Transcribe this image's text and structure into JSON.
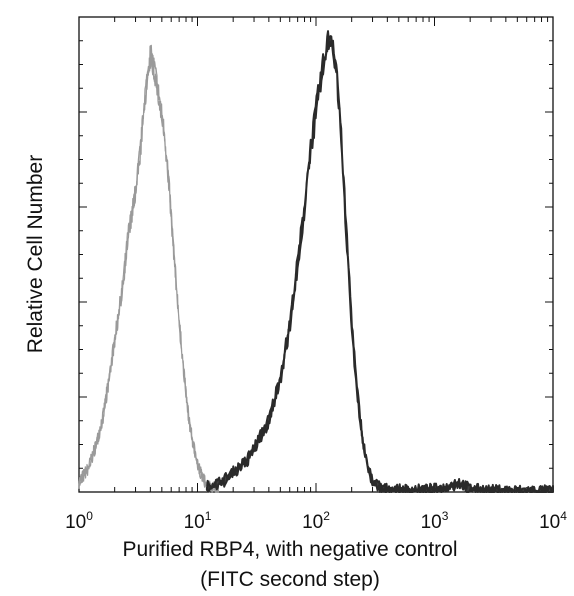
{
  "chart_data": {
    "type": "line",
    "title": "",
    "xlabel": [
      "Purified RBP4, with negative control",
      "(FITC second step)"
    ],
    "ylabel": "Relative Cell Number",
    "x_scale": "log",
    "xlim": [
      1,
      10000
    ],
    "ylim": [
      0,
      100
    ],
    "grid": false,
    "legend": "none",
    "x_ticks": [
      {
        "base": "10",
        "exp": "0",
        "value": 1
      },
      {
        "base": "10",
        "exp": "1",
        "value": 10
      },
      {
        "base": "10",
        "exp": "2",
        "value": 100
      },
      {
        "base": "10",
        "exp": "3",
        "value": 1000
      },
      {
        "base": "10",
        "exp": "4",
        "value": 10000
      }
    ],
    "series": [
      {
        "color": "#9a9a9a",
        "x": [
          1.0,
          1.2,
          1.4,
          1.6,
          1.8,
          2.0,
          2.3,
          2.6,
          3.0,
          3.3,
          3.6,
          4.0,
          4.4,
          4.8,
          5.2,
          5.6,
          6.0,
          6.5,
          7.0,
          7.6,
          8.2,
          9.0,
          10.0,
          11.0,
          12.0,
          13.0,
          15.0
        ],
        "y": [
          2,
          5,
          10,
          16,
          24,
          32,
          42,
          54,
          63,
          72,
          83,
          92,
          88,
          82,
          76,
          68,
          58,
          46,
          36,
          26,
          18,
          11,
          6,
          3,
          1.5,
          1,
          0.5
        ]
      },
      {
        "color": "#2a2a2a",
        "x": [
          12,
          16,
          20,
          25,
          30,
          40,
          50,
          60,
          70,
          80,
          90,
          100,
          110,
          120,
          130,
          140,
          150,
          160,
          170,
          185,
          200,
          220,
          250,
          280,
          320,
          380,
          500,
          800,
          1200,
          1600,
          2000,
          3000,
          5000,
          10000
        ],
        "y": [
          1,
          2,
          4,
          6,
          9,
          15,
          24,
          35,
          48,
          60,
          72,
          80,
          87,
          92,
          96,
          94,
          88,
          78,
          66,
          50,
          36,
          22,
          10,
          4,
          1.5,
          0.5,
          0.3,
          0.3,
          0.6,
          2,
          0.5,
          0.2,
          0.1,
          0.1
        ]
      }
    ]
  }
}
